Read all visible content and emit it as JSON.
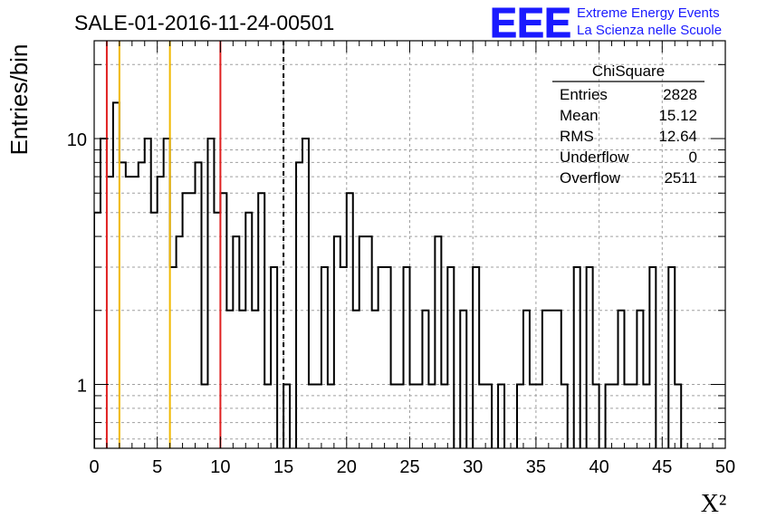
{
  "header": {
    "run_title": "SALE-01-2016-11-24-00501",
    "logo_text": "EEE",
    "logo_line1": "Extreme Energy Events",
    "logo_line2": "La Scienza nelle Scuole"
  },
  "stats": {
    "title": "ChiSquare",
    "rows": [
      {
        "label": "Entries",
        "value": "2828"
      },
      {
        "label": "Mean",
        "value": "15.12"
      },
      {
        "label": "RMS",
        "value": "12.64"
      },
      {
        "label": "Underflow",
        "value": "0"
      },
      {
        "label": "Overflow",
        "value": "2511"
      }
    ]
  },
  "colors": {
    "red_line": "#e02020",
    "yellow_line": "#f0b800",
    "logo_blue": "#1a1aff",
    "grid": "#a0a0a0",
    "histogram": "#000000"
  },
  "chart_data": {
    "type": "histogram",
    "xlabel": "X²",
    "ylabel": "Entries/bin",
    "xlim": [
      0,
      50
    ],
    "ylim": [
      0.55,
      25
    ],
    "y_scale": "log",
    "grid": true,
    "bin_width": 0.5,
    "x_ticks": [
      "0",
      "5",
      "10",
      "15",
      "20",
      "25",
      "30",
      "35",
      "40",
      "45",
      "50"
    ],
    "y_ticks": [
      {
        "value": 1,
        "label": "1"
      },
      {
        "value": 10,
        "label": "10"
      }
    ],
    "values": [
      5,
      10,
      7,
      14,
      8,
      7,
      7,
      8,
      10,
      5,
      7,
      10,
      3,
      4,
      6,
      6,
      8,
      1,
      10,
      5,
      6,
      2,
      4,
      2,
      5,
      2,
      6,
      1,
      3,
      0,
      1,
      0,
      8,
      10,
      1,
      1,
      3,
      1,
      4,
      3,
      6,
      2,
      4,
      4,
      2,
      3,
      3,
      1,
      1,
      3,
      1,
      1,
      2,
      1,
      4,
      1,
      3,
      0,
      2,
      0,
      3,
      1,
      1,
      0,
      1,
      0,
      0,
      1,
      2,
      1,
      1,
      2,
      2,
      2,
      1,
      0,
      3,
      0,
      3,
      1,
      0,
      1,
      1,
      2,
      1,
      1,
      2,
      1,
      3,
      0,
      0,
      3,
      1,
      0
    ],
    "vertical_lines": [
      {
        "x": 1,
        "color": "red",
        "style": "solid"
      },
      {
        "x": 2,
        "color": "yellow",
        "style": "solid"
      },
      {
        "x": 6,
        "color": "yellow",
        "style": "solid"
      },
      {
        "x": 10,
        "color": "red",
        "style": "solid"
      },
      {
        "x": 15,
        "color": "black",
        "style": "dashed"
      }
    ]
  }
}
